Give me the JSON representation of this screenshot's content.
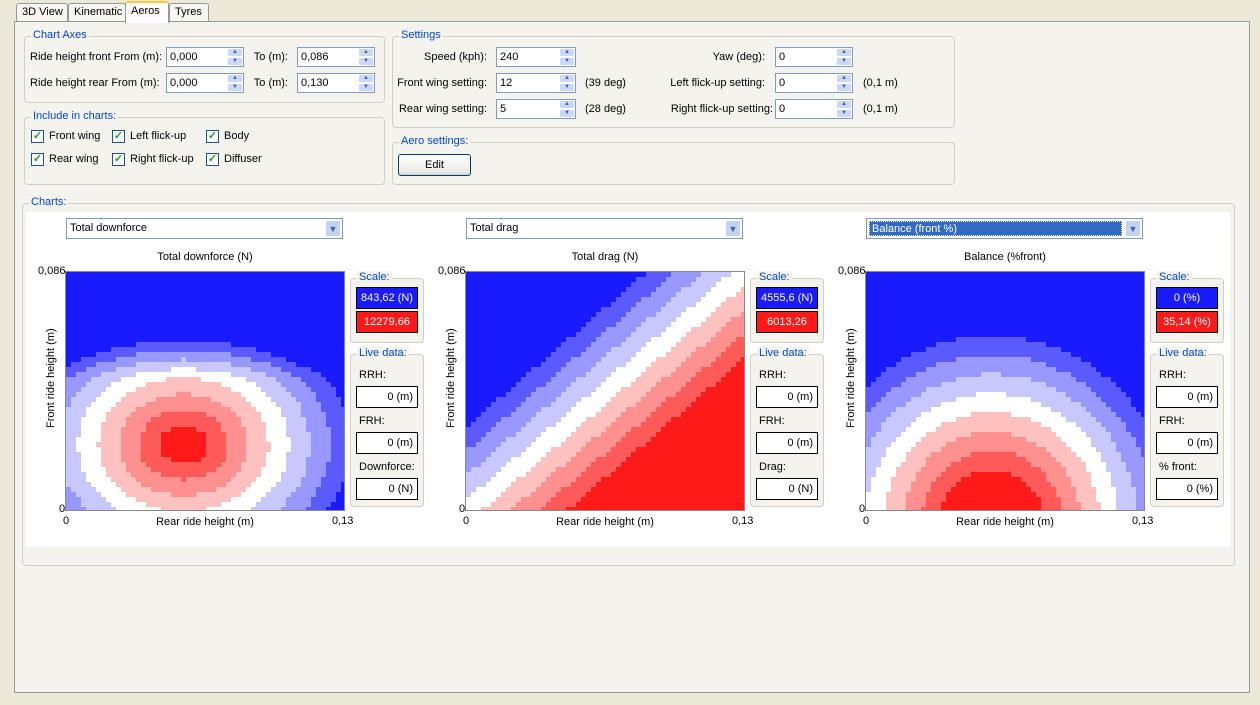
{
  "tabs": [
    {
      "label": "3D View"
    },
    {
      "label": "Kinematic"
    },
    {
      "label": "Aeros"
    },
    {
      "label": "Tyres"
    }
  ],
  "chart_axes": {
    "legend": "Chart Axes",
    "front_from_label": "Ride height front From (m):",
    "front_from_value": "0,000",
    "front_to_label": "To (m):",
    "front_to_value": "0,086",
    "rear_from_label": "Ride height rear From (m):",
    "rear_from_value": "0,000",
    "rear_to_label": "To (m):",
    "rear_to_value": "0,130"
  },
  "include": {
    "legend": "Include in charts:",
    "items": [
      {
        "label": "Front wing",
        "checked": true
      },
      {
        "label": "Left flick-up",
        "checked": true
      },
      {
        "label": "Body",
        "checked": true
      },
      {
        "label": "Rear wing",
        "checked": true
      },
      {
        "label": "Right flick-up",
        "checked": true
      },
      {
        "label": "Diffuser",
        "checked": true
      }
    ]
  },
  "settings": {
    "legend": "Settings",
    "speed_label": "Speed (kph):",
    "speed_value": "240",
    "front_wing_label": "Front wing setting:",
    "front_wing_value": "12",
    "front_wing_unit": "(39 deg)",
    "rear_wing_label": "Rear wing setting:",
    "rear_wing_value": "5",
    "rear_wing_unit": "(28 deg)",
    "yaw_label": "Yaw (deg):",
    "yaw_value": "0",
    "left_flick_label": "Left flick-up setting:",
    "left_flick_value": "0",
    "left_flick_unit": "(0,1 m)",
    "right_flick_label": "Right flick-up setting:",
    "right_flick_value": "0",
    "right_flick_unit": "(0,1 m)"
  },
  "aero_settings": {
    "legend": "Aero settings:",
    "edit_label": "Edit"
  },
  "charts_group": {
    "legend": "Charts:"
  },
  "icons": {
    "spin_up": "spin-up-arrow-icon",
    "spin_down": "spin-down-arrow-icon",
    "combo_drop": "chevron-down-icon",
    "check": "checkmark-icon"
  },
  "colors": {
    "low": "#1a1aff",
    "high": "#ff1a1a",
    "mid": "#ffffff"
  },
  "charts": [
    {
      "selector": "Total downforce",
      "title": "Total downforce (N)",
      "y_axis": "Front ride height (m)",
      "x_axis": "Rear ride height (m)",
      "x_min": "0",
      "x_max": "0,13",
      "y_min": "0",
      "y_max": "0,086",
      "scale_label": "Scale:",
      "scale_low": "843,62 (N)",
      "scale_high": "12279,66",
      "live_label": "Live data:",
      "rrh_label": "RRH:",
      "rrh_value": "0 (m)",
      "frh_label": "FRH:",
      "frh_value": "0 (m)",
      "extra_label": "Downforce:",
      "extra_value": "0 (N)"
    },
    {
      "selector": "Total drag",
      "title": "Total drag (N)",
      "y_axis": "Front ride height (m)",
      "x_axis": "Rear ride height (m)",
      "x_min": "0",
      "x_max": "0,13",
      "y_min": "0",
      "y_max": "0,086",
      "scale_label": "Scale:",
      "scale_low": "4555,6 (N)",
      "scale_high": "6013,26",
      "live_label": "Live data:",
      "rrh_label": "RRH:",
      "rrh_value": "0 (m)",
      "frh_label": "FRH:",
      "frh_value": "0 (m)",
      "extra_label": "Drag:",
      "extra_value": "0 (N)"
    },
    {
      "selector": "Balance (front %)",
      "title": "Balance (%front)",
      "y_axis": "Front ride height (m)",
      "x_axis": "Rear ride height (m)",
      "x_min": "0",
      "x_max": "0,13",
      "y_min": "0",
      "y_max": "0,086",
      "scale_label": "Scale:",
      "scale_low": "0 (%)",
      "scale_high": "35,14 (%)",
      "live_label": "Live data:",
      "rrh_label": "RRH:",
      "rrh_value": "0 (m)",
      "frh_label": "FRH:",
      "frh_value": "0 (m)",
      "extra_label": "% front:",
      "extra_value": "0 (%)"
    }
  ]
}
